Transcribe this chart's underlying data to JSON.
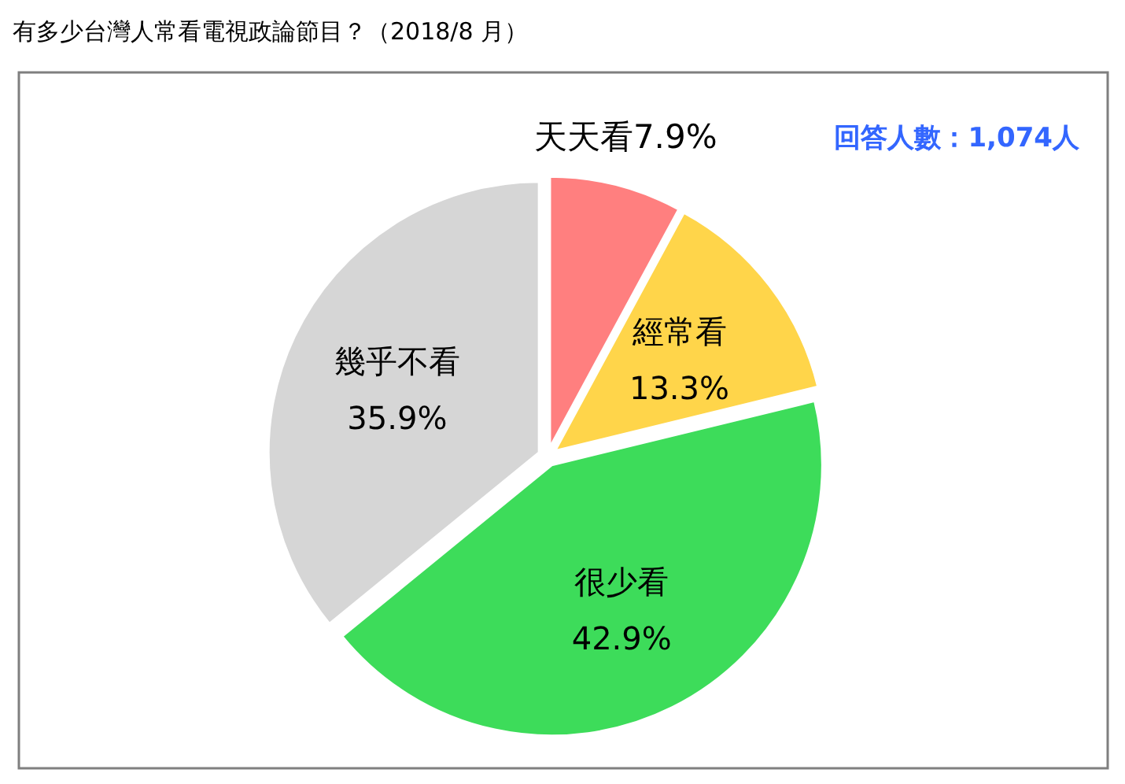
{
  "chart_data": {
    "type": "pie",
    "title": "有多少台灣人常看電視政論節目？（2018/8 月）",
    "annotations": [
      "回答人數：1,074人"
    ],
    "categories": [
      "天天看",
      "經常看",
      "很少看",
      "幾乎不看"
    ],
    "values": [
      7.9,
      13.3,
      42.9,
      35.9
    ],
    "colors": [
      "#ff7f7f",
      "#ffd54a",
      "#3ddc5a",
      "#d6d6d6"
    ],
    "value_labels": [
      "7.9%",
      "13.3%",
      "42.9%",
      "35.9%"
    ]
  }
}
